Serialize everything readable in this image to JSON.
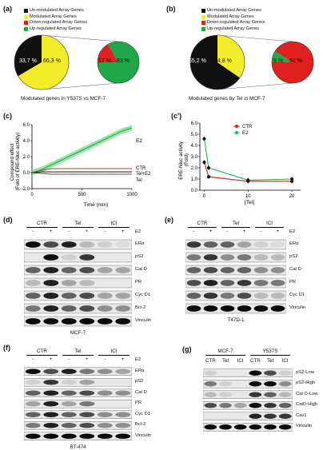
{
  "panels": {
    "a": {
      "label": "(a)",
      "legend": [
        {
          "label": "Un-modulated Array Genes",
          "color": "#111111"
        },
        {
          "label": "Modulated Array Genes",
          "color": "#f2ec2a"
        },
        {
          "label": "Down-regulated Array Genes",
          "color": "#e01f1f"
        },
        {
          "label": "Up-regulated Array Genes",
          "color": "#1fa74a"
        }
      ],
      "pie_main": [
        "33,7 %",
        "66,3 %"
      ],
      "pie_sub": [
        "17 %",
        "83 %"
      ],
      "caption": "Modulated genes in Y537S vs MCF-7"
    },
    "b": {
      "label": "(b)",
      "legend": [
        {
          "label": "Un-modulated Array Genes",
          "color": "#111111"
        },
        {
          "label": "Modulated Array Genes",
          "color": "#f2ec2a"
        },
        {
          "label": "Down-regulated Array Genes",
          "color": "#e01f1f"
        },
        {
          "label": "Up-regulated Array Genes",
          "color": "#1fa74a"
        }
      ],
      "pie_main": [
        "65,2 %",
        "34,8 %"
      ],
      "pie_sub": [
        "9 %",
        "91 %"
      ],
      "caption": "Modulated genes by Tel in MCF-7"
    },
    "c": {
      "label": "(c)",
      "ylabel": [
        "Compound effect",
        "(Fold of ERE-Nluc activity)"
      ],
      "xlabel": "Time (min)",
      "series_labels": [
        "E2",
        "CTR",
        "Tel+E2",
        "Tel"
      ]
    },
    "c2": {
      "label": "(c')",
      "ylabel": [
        "ERE-Nluc activity",
        "(Fold)"
      ],
      "xlabel": "[Tel]",
      "legend": [
        "CTR",
        "E2"
      ]
    },
    "d": {
      "label": "(d)",
      "groups": [
        "CTR",
        "Tel",
        "ICI"
      ],
      "signs": [
        "-",
        "+",
        "-",
        "+",
        "-",
        "+"
      ],
      "treat": "E2",
      "rows": [
        "ERα",
        "pS2",
        "Cat D",
        "PR",
        "Cyc D1",
        "Bcl-2",
        "Vinculin"
      ],
      "cell": "MCF-7"
    },
    "e": {
      "label": "(e)",
      "groups": [
        "CTR",
        "Tel",
        "ICI"
      ],
      "signs": [
        "-",
        "+",
        "-",
        "+",
        "-",
        "+"
      ],
      "treat": "E2",
      "rows": [
        "ERα",
        "pS2",
        "Cat D",
        "PR",
        "Cyc D1",
        "Vinculin"
      ],
      "cell": "T47D-1"
    },
    "f": {
      "label": "(f)",
      "groups": [
        "CTR",
        "Tel",
        "ICI"
      ],
      "signs": [
        "-",
        "+",
        "-",
        "+",
        "-",
        "+"
      ],
      "treat": "E2",
      "rows": [
        "ERα",
        "pS2",
        "Cat D",
        "PR",
        "Cyc D1",
        "Bcl-2",
        "Vinculin"
      ],
      "cell": "BT-474"
    },
    "g": {
      "label": "(g)",
      "cells": [
        "MCF-7",
        "Y537S"
      ],
      "lanes": [
        "CTR",
        "Tel",
        "ICI",
        "CTR",
        "Tel",
        "ICI"
      ],
      "rows": [
        "pS2-Low",
        "pS2-High",
        "Cat D-Low",
        "CatD-High",
        "Cav1",
        "Vinculin"
      ]
    }
  },
  "chart_data": [
    {
      "type": "pie",
      "title": "Modulated genes in Y537S vs MCF-7",
      "slices": [
        {
          "label": "Un-modulated Array Genes",
          "value": 33.7
        },
        {
          "label": "Modulated Array Genes",
          "value": 66.3
        }
      ]
    },
    {
      "type": "pie",
      "slices": [
        {
          "label": "Down-regulated Array Genes",
          "value": 17
        },
        {
          "label": "Up-regulated Array Genes",
          "value": 83
        }
      ]
    },
    {
      "type": "pie",
      "title": "Modulated genes by Tel in MCF-7",
      "slices": [
        {
          "label": "Un-modulated Array Genes",
          "value": 65.2
        },
        {
          "label": "Modulated Array Genes",
          "value": 34.8
        }
      ]
    },
    {
      "type": "pie",
      "slices": [
        {
          "label": "Down-regulated Array Genes",
          "value": 91
        },
        {
          "label": "Up-regulated Array Genes",
          "value": 9
        }
      ]
    },
    {
      "type": "line",
      "ylabel": "Compound effect (Fold of ERE-Nluc activity)",
      "xlabel": "Time (min)",
      "xlim": [
        0,
        1000
      ],
      "ylim": [
        -2.0,
        6.0
      ],
      "xticks": [
        0,
        500,
        1000
      ],
      "yticks": [
        -2.0,
        0.0,
        2.0,
        4.0,
        6.0
      ],
      "series": [
        {
          "name": "E2",
          "x": [
            0,
            100,
            200,
            300,
            400,
            500,
            600,
            700,
            800,
            900,
            1000
          ],
          "y": [
            0.0,
            0.4,
            1.0,
            1.6,
            2.2,
            2.8,
            3.4,
            4.0,
            4.6,
            5.2,
            5.6
          ],
          "color": "#22b34a"
        },
        {
          "name": "CTR",
          "x": [
            0,
            100,
            200,
            400,
            600,
            800,
            1000
          ],
          "y": [
            0.0,
            0.3,
            0.5,
            0.5,
            0.5,
            0.5,
            0.5
          ],
          "color": "#a04b3c"
        },
        {
          "name": "Tel+E2",
          "x": [
            0,
            100,
            200,
            400,
            600,
            800,
            1000
          ],
          "y": [
            0.0,
            0.1,
            0.1,
            0.1,
            0.1,
            0.1,
            0.1
          ],
          "color": "#222222"
        },
        {
          "name": "Tel",
          "x": [
            0,
            100,
            200,
            400,
            600,
            800,
            1000
          ],
          "y": [
            0.0,
            -0.1,
            -0.2,
            -0.2,
            -0.2,
            -0.2,
            -0.2
          ],
          "color": "#555555"
        }
      ]
    },
    {
      "type": "line",
      "ylabel": "ERE-Nluc activity (Fold)",
      "xlabel": "[Tel]",
      "xlim": [
        -1,
        22
      ],
      "ylim": [
        0.0,
        6.0
      ],
      "xticks": [
        0,
        10,
        20
      ],
      "yticks": [
        0.0,
        1.0,
        2.0,
        3.0,
        4.0,
        5.0,
        6.0
      ],
      "series": [
        {
          "name": "CTR",
          "x": [
            0,
            1,
            10,
            20
          ],
          "y": [
            2.5,
            1.2,
            0.8,
            0.8
          ],
          "color": "#d42020"
        },
        {
          "name": "E2",
          "x": [
            0,
            1,
            10,
            20
          ],
          "y": [
            4.6,
            2.0,
            0.9,
            1.0
          ],
          "color": "#22b34a"
        }
      ]
    }
  ]
}
